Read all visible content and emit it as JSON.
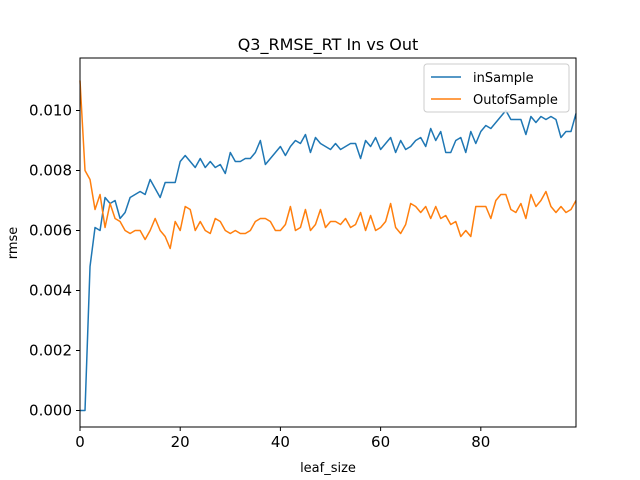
{
  "chart_data": {
    "type": "line",
    "title": "Q3_RMSE_RT In vs Out",
    "xlabel": "leaf_size",
    "ylabel": "rmse",
    "xlim": [
      0,
      99
    ],
    "ylim": [
      -0.00055,
      0.01175
    ],
    "xticks": [
      0,
      20,
      40,
      60,
      80
    ],
    "xtick_labels": [
      "0",
      "20",
      "40",
      "60",
      "80"
    ],
    "yticks": [
      0,
      0.002,
      0.004,
      0.006,
      0.008,
      0.01
    ],
    "ytick_labels": [
      "0.000",
      "0.002",
      "0.004",
      "0.006",
      "0.008",
      "0.010"
    ],
    "legend_position": "top-right",
    "grid": false,
    "x": [
      0,
      1,
      2,
      3,
      4,
      5,
      6,
      7,
      8,
      9,
      10,
      11,
      12,
      13,
      14,
      15,
      16,
      17,
      18,
      19,
      20,
      21,
      22,
      23,
      24,
      25,
      26,
      27,
      28,
      29,
      30,
      31,
      32,
      33,
      34,
      35,
      36,
      37,
      38,
      39,
      40,
      41,
      42,
      43,
      44,
      45,
      46,
      47,
      48,
      49,
      50,
      51,
      52,
      53,
      54,
      55,
      56,
      57,
      58,
      59,
      60,
      61,
      62,
      63,
      64,
      65,
      66,
      67,
      68,
      69,
      70,
      71,
      72,
      73,
      74,
      75,
      76,
      77,
      78,
      79,
      80,
      81,
      82,
      83,
      84,
      85,
      86,
      87,
      88,
      89,
      90,
      91,
      92,
      93,
      94,
      95,
      96,
      97,
      98,
      99
    ],
    "series": [
      {
        "name": "inSample",
        "color": "#1f77b4",
        "values": [
          0.0,
          0.0,
          0.0048,
          0.0061,
          0.006,
          0.0071,
          0.0069,
          0.007,
          0.0064,
          0.0066,
          0.0071,
          0.0072,
          0.0073,
          0.0072,
          0.0077,
          0.0074,
          0.0071,
          0.0076,
          0.0076,
          0.0076,
          0.0083,
          0.0085,
          0.0083,
          0.0081,
          0.0084,
          0.0081,
          0.0083,
          0.0081,
          0.0082,
          0.0079,
          0.0086,
          0.0083,
          0.0083,
          0.0084,
          0.0084,
          0.0086,
          0.009,
          0.0082,
          0.0084,
          0.0086,
          0.0088,
          0.0085,
          0.0088,
          0.009,
          0.0089,
          0.0092,
          0.0086,
          0.0091,
          0.0089,
          0.0088,
          0.0087,
          0.0089,
          0.0087,
          0.0088,
          0.0089,
          0.0089,
          0.0084,
          0.009,
          0.0088,
          0.0091,
          0.0087,
          0.0089,
          0.0091,
          0.0086,
          0.009,
          0.0087,
          0.0088,
          0.009,
          0.0091,
          0.0088,
          0.0094,
          0.009,
          0.0093,
          0.0086,
          0.0086,
          0.009,
          0.0091,
          0.0086,
          0.0093,
          0.0089,
          0.0093,
          0.0095,
          0.0094,
          0.0096,
          0.0098,
          0.01,
          0.0097,
          0.0097,
          0.0097,
          0.0092,
          0.0098,
          0.0096,
          0.0098,
          0.0097,
          0.0098,
          0.0097,
          0.0091,
          0.0093,
          0.0093,
          0.0099
        ]
      },
      {
        "name": "OutofSample",
        "color": "#ff7f0e",
        "values": [
          0.011,
          0.008,
          0.0077,
          0.0067,
          0.0072,
          0.0061,
          0.0069,
          0.0064,
          0.0063,
          0.006,
          0.0059,
          0.006,
          0.006,
          0.0057,
          0.006,
          0.0064,
          0.006,
          0.0058,
          0.0054,
          0.0063,
          0.006,
          0.0068,
          0.0067,
          0.006,
          0.0063,
          0.006,
          0.0059,
          0.0064,
          0.0063,
          0.006,
          0.0059,
          0.006,
          0.0059,
          0.0059,
          0.006,
          0.0063,
          0.0064,
          0.0064,
          0.0063,
          0.006,
          0.006,
          0.0062,
          0.0068,
          0.006,
          0.0061,
          0.0067,
          0.006,
          0.0062,
          0.0067,
          0.0061,
          0.0063,
          0.0063,
          0.0062,
          0.0064,
          0.0061,
          0.0062,
          0.0066,
          0.006,
          0.0065,
          0.006,
          0.0061,
          0.0063,
          0.0069,
          0.0061,
          0.0059,
          0.0062,
          0.0069,
          0.0068,
          0.0066,
          0.0068,
          0.0064,
          0.0068,
          0.0064,
          0.0065,
          0.0062,
          0.0063,
          0.0058,
          0.006,
          0.0058,
          0.0068,
          0.0068,
          0.0068,
          0.0064,
          0.007,
          0.0072,
          0.0072,
          0.0067,
          0.0066,
          0.0069,
          0.0064,
          0.0072,
          0.0068,
          0.007,
          0.0073,
          0.0068,
          0.0066,
          0.0068,
          0.0066,
          0.0067,
          0.007
        ]
      }
    ]
  }
}
